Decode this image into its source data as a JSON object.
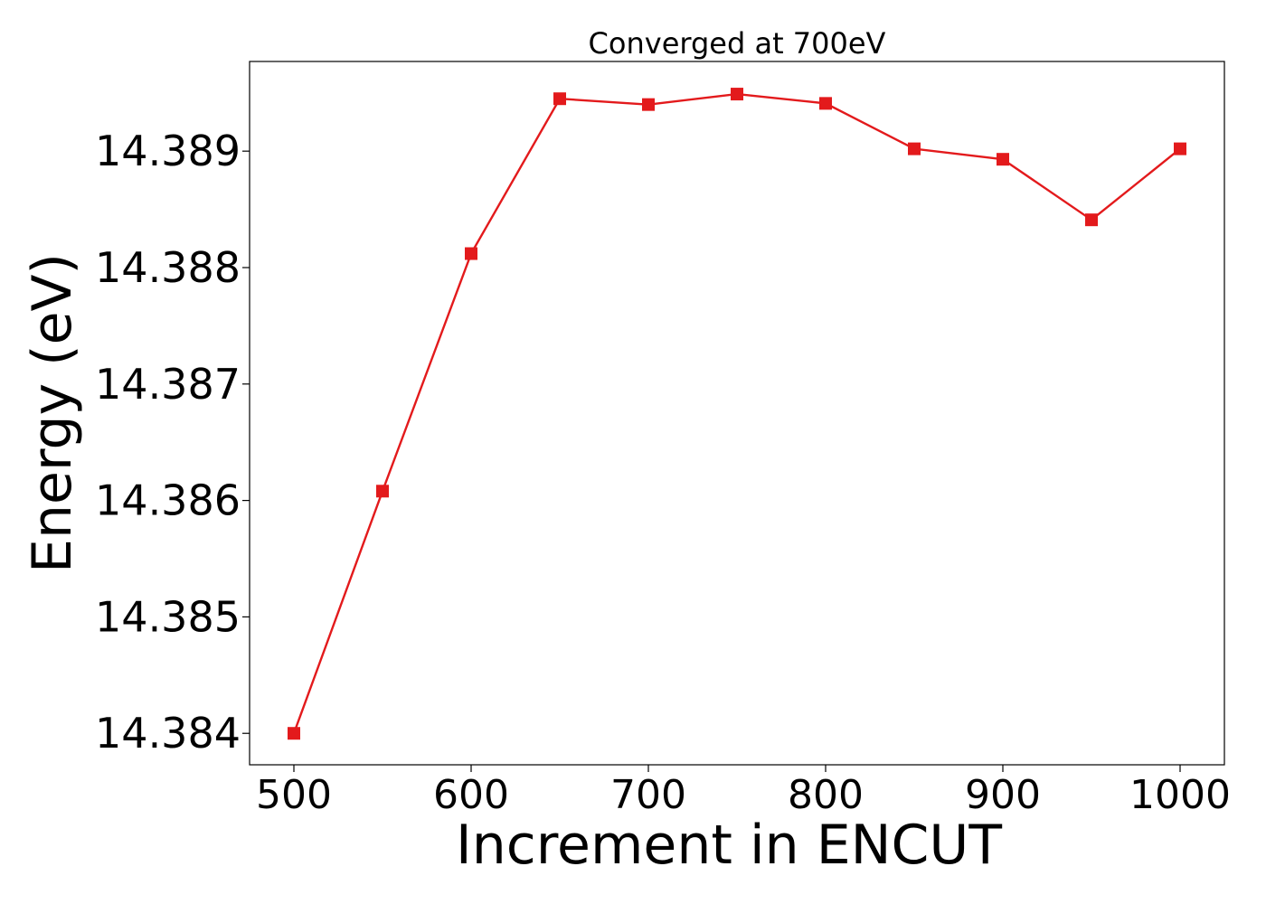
{
  "chart_data": {
    "type": "line",
    "title": "Converged at 700eV",
    "xlabel": "Increment in ENCUT",
    "ylabel": "Energy (eV)",
    "x": [
      500,
      550,
      600,
      650,
      700,
      750,
      800,
      850,
      900,
      950,
      1000
    ],
    "series": [
      {
        "values": [
          14.384,
          14.38608,
          14.38812,
          14.38945,
          14.3894,
          14.38949,
          14.38941,
          14.38902,
          14.38893,
          14.38841,
          14.38902
        ],
        "color": "#e31a1c",
        "marker": "square"
      }
    ],
    "xlim": [
      475,
      1025
    ],
    "ylim": [
      14.38373,
      14.38977
    ],
    "xticks": [
      500,
      600,
      700,
      800,
      900,
      1000
    ],
    "xtick_labels": [
      "500",
      "600",
      "700",
      "800",
      "900",
      "1000"
    ],
    "yticks": [
      14.384,
      14.385,
      14.386,
      14.387,
      14.388,
      14.389
    ],
    "ytick_labels": [
      "14.384",
      "14.385",
      "14.386",
      "14.387",
      "14.388",
      "14.389"
    ],
    "grid": false,
    "legend": false
  }
}
